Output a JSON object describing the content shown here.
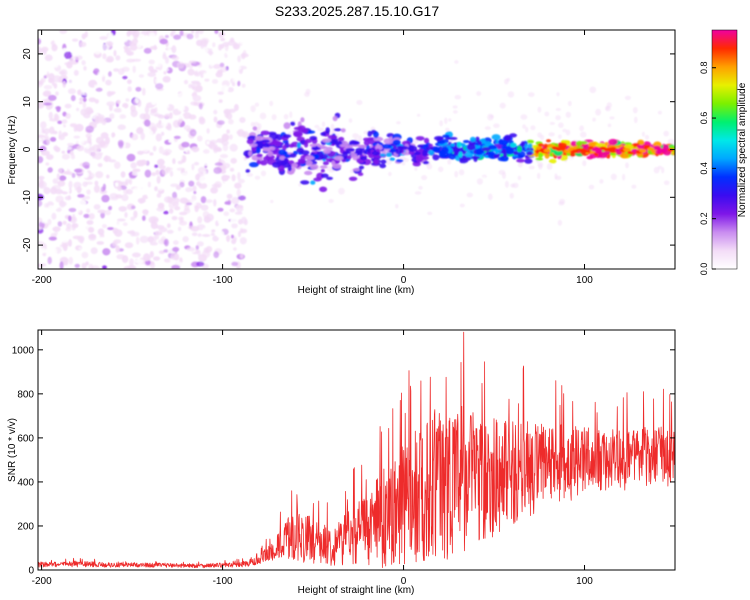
{
  "figure_title": "S233.2025.287.15.10.G17",
  "colors": {
    "snr_line": "#ee2b2b",
    "axes": "#000000",
    "background": "#ffffff",
    "colormap": [
      "#ffffff",
      "#f3dcf7",
      "#c98cf0",
      "#7e16e8",
      "#3a0cf0",
      "#0030ff",
      "#00a8ff",
      "#00e8e8",
      "#00f070",
      "#7cf000",
      "#e8f000",
      "#ffa000",
      "#ff2a00",
      "#f000a0"
    ]
  },
  "chart_data": [
    {
      "type": "heatmap",
      "xlabel": "Height of straight line (km)",
      "ylabel": "Frequency (Hz)",
      "xlim": [
        -202,
        150
      ],
      "ylim": [
        -25,
        25
      ],
      "xticks": [
        "-200",
        "-100",
        "0",
        "100"
      ],
      "yticks": [
        "-20",
        "-10",
        "0",
        "10",
        "20"
      ],
      "xtick_values": [
        -200,
        -100,
        0,
        100
      ],
      "ytick_values": [
        -20,
        -10,
        0,
        10,
        20
      ],
      "noise_region_km": [
        -202,
        -87
      ],
      "signal_start_km": -87,
      "signal_center_hz": 0,
      "colorbar": {
        "label": "Normalized spectral amplitude",
        "range": [
          0,
          0.95
        ],
        "ticks": [
          "0.0",
          "0.2",
          "0.4",
          "0.6",
          "0.8"
        ],
        "tick_values": [
          0,
          0.2,
          0.4,
          0.6,
          0.8
        ]
      }
    },
    {
      "type": "line",
      "xlabel": "Height of straight line (km)",
      "ylabel": "SNR (10 * v/v)",
      "xlim": [
        -202,
        150
      ],
      "ylim": [
        0,
        1090
      ],
      "xticks": [
        "-200",
        "-100",
        "0",
        "100"
      ],
      "yticks": [
        "0",
        "200",
        "400",
        "600",
        "800",
        "1000"
      ],
      "xtick_values": [
        -200,
        -100,
        0,
        100
      ],
      "ytick_values": [
        0,
        200,
        400,
        600,
        800,
        1000
      ],
      "series": [
        {
          "name": "SNR",
          "x": [
            -202,
            -190,
            -180,
            -170,
            -160,
            -150,
            -140,
            -130,
            -120,
            -110,
            -100,
            -90,
            -80,
            -75,
            -70,
            -65,
            -60,
            -55,
            -50,
            -45,
            -40,
            -35,
            -30,
            -25,
            -20,
            -15,
            -10,
            -5,
            0,
            5,
            10,
            15,
            20,
            25,
            30,
            35,
            40,
            45,
            50,
            55,
            60,
            65,
            70,
            75,
            80,
            85,
            90,
            95,
            100,
            105,
            110,
            115,
            120,
            125,
            130,
            135,
            140,
            145,
            150
          ],
          "mean": [
            25,
            25,
            28,
            25,
            22,
            24,
            22,
            22,
            20,
            20,
            22,
            25,
            40,
            70,
            100,
            140,
            150,
            150,
            130,
            120,
            110,
            130,
            160,
            170,
            190,
            210,
            240,
            270,
            300,
            320,
            350,
            380,
            400,
            410,
            410,
            420,
            430,
            430,
            430,
            440,
            440,
            450,
            460,
            460,
            470,
            480,
            480,
            490,
            490,
            490,
            500,
            500,
            500,
            500,
            510,
            510,
            520,
            520,
            520
          ],
          "spread": [
            12,
            12,
            14,
            12,
            10,
            10,
            10,
            10,
            10,
            10,
            10,
            12,
            20,
            40,
            60,
            90,
            110,
            120,
            100,
            90,
            90,
            110,
            130,
            150,
            170,
            200,
            230,
            260,
            280,
            300,
            320,
            340,
            360,
            360,
            360,
            330,
            320,
            300,
            280,
            260,
            240,
            230,
            220,
            210,
            200,
            190,
            180,
            170,
            160,
            150,
            140,
            140,
            140,
            140,
            140,
            140,
            140,
            140,
            140
          ]
        }
      ]
    }
  ]
}
